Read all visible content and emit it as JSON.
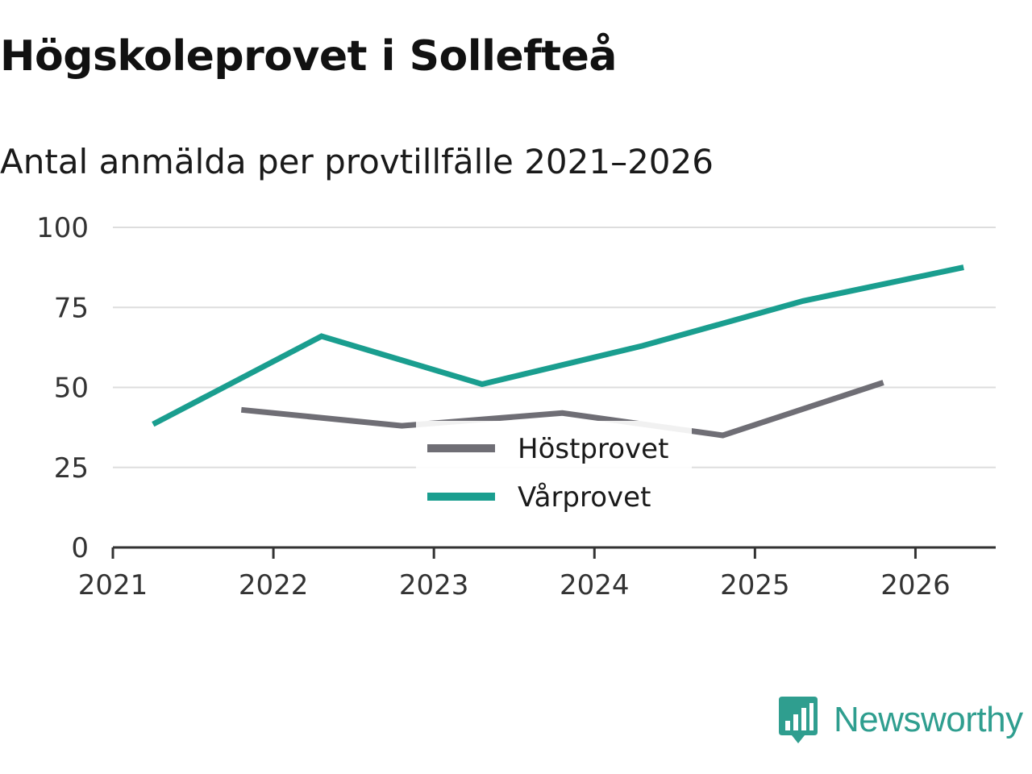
{
  "header": {
    "title": "Högskoleprovet i Sollefteå",
    "subtitle": "Antal anmälda per provtillfälle 2021–2026"
  },
  "brand": {
    "name": "Newsworthy",
    "color": "#2f9e8f"
  },
  "chart_data": {
    "type": "line",
    "title": "Högskoleprovet i Sollefteå",
    "subtitle": "Antal anmälda per provtillfälle 2021–2026",
    "xlabel": "",
    "ylabel": "",
    "xlim": [
      2021,
      2026.5
    ],
    "ylim": [
      0,
      100
    ],
    "yticks": [
      0,
      25,
      50,
      75,
      100
    ],
    "xticks": [
      2021,
      2022,
      2023,
      2024,
      2025,
      2026
    ],
    "grid": true,
    "legend_position": "center-bottom",
    "series": [
      {
        "name": "Höstprovet",
        "color": "#6f6e75",
        "x": [
          2021.8,
          2022.8,
          2023.8,
          2024.8,
          2025.8
        ],
        "y": [
          43,
          38,
          42,
          35,
          51.5
        ]
      },
      {
        "name": "Vårprovet",
        "color": "#1a9e8f",
        "x": [
          2021.25,
          2022.3,
          2023.3,
          2024.3,
          2025.3,
          2026.3
        ],
        "y": [
          38.5,
          66,
          51,
          63,
          77,
          87.5
        ]
      }
    ]
  }
}
